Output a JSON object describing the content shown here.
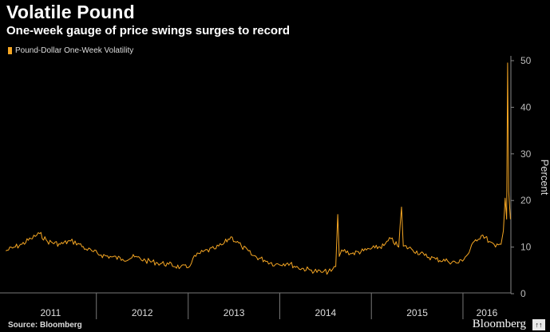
{
  "header": {
    "title": "Volatile Pound",
    "subtitle": "One-week gauge of price swings surges to record"
  },
  "footer": {
    "source": "Source: Bloomberg",
    "brand": "Bloomberg",
    "badge": "↑↑"
  },
  "chart_data": {
    "type": "line",
    "title": "Volatile Pound",
    "subtitle": "One-week gauge of price swings surges to record",
    "ylabel": "Percent",
    "ylim": [
      0,
      50
    ],
    "yticks": [
      0,
      10,
      20,
      30,
      40,
      50
    ],
    "xlim": [
      "2011-01-01",
      "2016-07-10"
    ],
    "xticks": [
      "2011",
      "2012",
      "2013",
      "2014",
      "2015",
      "2016"
    ],
    "grid": false,
    "legend": "top-left",
    "color": "#f5a623",
    "series": [
      {
        "name": "Pound-Dollar One-Week Volatility",
        "points": [
          [
            "2011-01-05",
            9.2
          ],
          [
            "2011-02-01",
            9.8
          ],
          [
            "2011-03-10",
            10.6
          ],
          [
            "2011-04-15",
            11.8
          ],
          [
            "2011-05-20",
            12.9
          ],
          [
            "2011-06-20",
            11.2
          ],
          [
            "2011-08-10",
            10.6
          ],
          [
            "2011-09-20",
            11.3
          ],
          [
            "2011-10-20",
            10.8
          ],
          [
            "2011-11-20",
            9.6
          ],
          [
            "2011-12-20",
            9.0
          ],
          [
            "2012-01-20",
            8.3
          ],
          [
            "2012-03-01",
            7.9
          ],
          [
            "2012-04-15",
            7.4
          ],
          [
            "2012-06-01",
            7.9
          ],
          [
            "2012-07-15",
            7.1
          ],
          [
            "2012-09-01",
            6.6
          ],
          [
            "2012-10-15",
            6.3
          ],
          [
            "2012-12-01",
            5.7
          ],
          [
            "2013-01-01",
            5.6
          ],
          [
            "2013-01-20",
            7.6
          ],
          [
            "2013-03-01",
            9.0
          ],
          [
            "2013-04-15",
            9.6
          ],
          [
            "2013-05-20",
            10.6
          ],
          [
            "2013-06-20",
            12.2
          ],
          [
            "2013-08-01",
            10.2
          ],
          [
            "2013-09-15",
            8.2
          ],
          [
            "2013-11-01",
            7.2
          ],
          [
            "2013-12-15",
            6.3
          ],
          [
            "2014-02-01",
            6.6
          ],
          [
            "2014-03-15",
            5.6
          ],
          [
            "2014-05-01",
            5.1
          ],
          [
            "2014-06-15",
            4.6
          ],
          [
            "2014-07-25",
            4.8
          ],
          [
            "2014-08-12",
            5.8
          ],
          [
            "2014-08-20",
            17.0
          ],
          [
            "2014-08-26",
            8.0
          ],
          [
            "2014-09-05",
            9.4
          ],
          [
            "2014-10-15",
            8.6
          ],
          [
            "2014-12-01",
            9.2
          ],
          [
            "2015-01-15",
            9.8
          ],
          [
            "2015-02-20",
            10.3
          ],
          [
            "2015-03-20",
            11.8
          ],
          [
            "2015-04-20",
            10.0
          ],
          [
            "2015-05-01",
            18.6
          ],
          [
            "2015-05-08",
            10.2
          ],
          [
            "2015-06-10",
            9.6
          ],
          [
            "2015-08-01",
            8.2
          ],
          [
            "2015-09-15",
            7.4
          ],
          [
            "2015-11-01",
            7.0
          ],
          [
            "2015-12-15",
            6.6
          ],
          [
            "2016-01-20",
            8.4
          ],
          [
            "2016-02-20",
            11.6
          ],
          [
            "2016-03-20",
            12.6
          ],
          [
            "2016-04-15",
            11.2
          ],
          [
            "2016-05-10",
            10.0
          ],
          [
            "2016-06-01",
            10.6
          ],
          [
            "2016-06-10",
            13.5
          ],
          [
            "2016-06-17",
            20.5
          ],
          [
            "2016-06-23",
            16.0
          ],
          [
            "2016-06-27",
            49.5
          ],
          [
            "2016-07-01",
            22.0
          ],
          [
            "2016-07-08",
            16.0
          ]
        ]
      }
    ]
  }
}
